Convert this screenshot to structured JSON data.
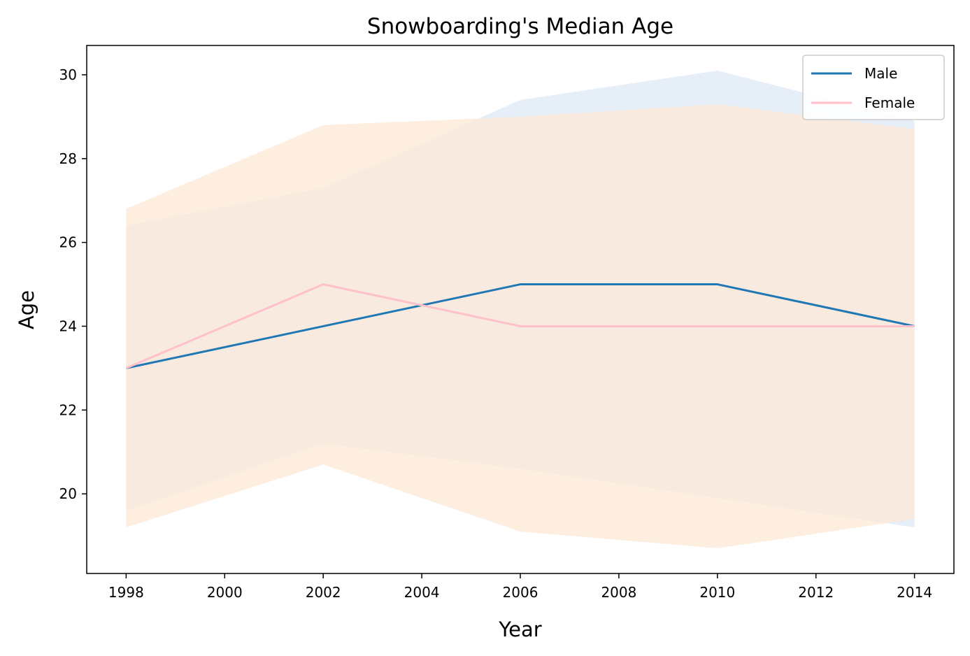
{
  "chart_data": {
    "type": "line",
    "title": "Snowboarding's Median Age",
    "xlabel": "Year",
    "ylabel": "Age",
    "x": [
      1998,
      2002,
      2006,
      2010,
      2014
    ],
    "xlim": [
      1997.2,
      2014.8
    ],
    "ylim": [
      18.1,
      30.7
    ],
    "xticks": [
      1998,
      2000,
      2002,
      2004,
      2006,
      2008,
      2010,
      2012,
      2014
    ],
    "yticks": [
      20,
      22,
      24,
      26,
      28,
      30
    ],
    "grid": false,
    "legend_position": "top-right",
    "series": [
      {
        "name": "Male",
        "color": "#1f77b4",
        "band_color": "#dce8f5",
        "values": [
          23,
          24,
          25,
          25,
          24
        ],
        "band_upper": [
          26.4,
          27.3,
          29.4,
          30.1,
          28.9
        ],
        "band_lower": [
          19.6,
          21.2,
          20.6,
          19.9,
          19.2
        ]
      },
      {
        "name": "Female",
        "color": "#ffc0cb",
        "band_color": "#fde8d6",
        "values": [
          23,
          25,
          24,
          24,
          24
        ],
        "band_upper": [
          26.8,
          28.8,
          29.0,
          29.3,
          28.7
        ],
        "band_lower": [
          19.2,
          20.7,
          19.1,
          18.7,
          19.4
        ]
      }
    ]
  }
}
